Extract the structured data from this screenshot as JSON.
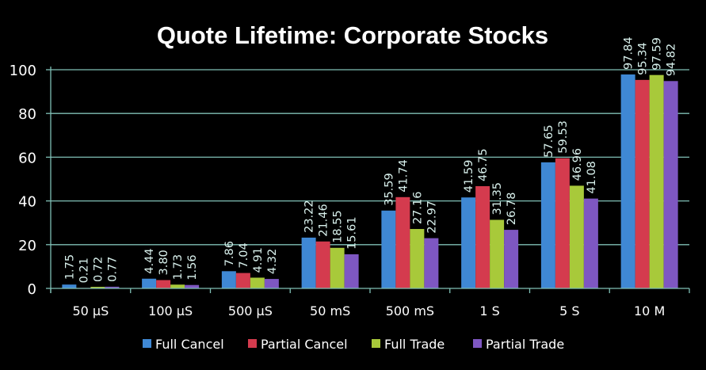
{
  "chart_data": {
    "type": "bar",
    "title": "Quote Lifetime: Corporate Stocks",
    "xlabel": "",
    "ylabel": "",
    "ylim": [
      0,
      100
    ],
    "yticks": [
      0,
      20,
      40,
      60,
      80,
      100
    ],
    "grid": true,
    "legend_position": "bottom",
    "categories": [
      "50 µS",
      "100 µS",
      "500 µS",
      "50 mS",
      "500 mS",
      "1 S",
      "5 S",
      "10 M"
    ],
    "series": [
      {
        "name": "Full Cancel",
        "color": "#3f88d4",
        "values": [
          1.75,
          4.44,
          7.86,
          23.22,
          35.59,
          41.59,
          57.65,
          97.84
        ]
      },
      {
        "name": "Partial Cancel",
        "color": "#d43b4e",
        "values": [
          0.21,
          3.8,
          7.04,
          21.46,
          41.74,
          46.75,
          59.53,
          95.34
        ]
      },
      {
        "name": "Full Trade",
        "color": "#a8c93a",
        "values": [
          0.72,
          1.73,
          4.91,
          18.55,
          27.16,
          31.35,
          46.96,
          97.59
        ]
      },
      {
        "name": "Partial Trade",
        "color": "#7e57c2",
        "values": [
          0.77,
          1.56,
          4.32,
          15.61,
          22.97,
          26.78,
          41.08,
          94.82
        ]
      }
    ],
    "data_labels": [
      "1.75",
      "0.21",
      "0.72",
      "0.77",
      "4.44",
      "3.80",
      "1.73",
      "1.56",
      "7.86",
      "7.04",
      "4.91",
      "4.32",
      "23.22",
      "21.46",
      "18.55",
      "15.61",
      "35.59",
      "41.74",
      "27.16",
      "22.97",
      "41.59",
      "46.75",
      "31.35",
      "26.78",
      "57.65",
      "59.53",
      "46.96",
      "41.08",
      "97.84",
      "95.34",
      "97.59",
      "94.82"
    ],
    "colors": {
      "background": "#000000",
      "grid": "#7fbfb5",
      "text": "#ffffff",
      "label": "#d8f0ec"
    }
  }
}
